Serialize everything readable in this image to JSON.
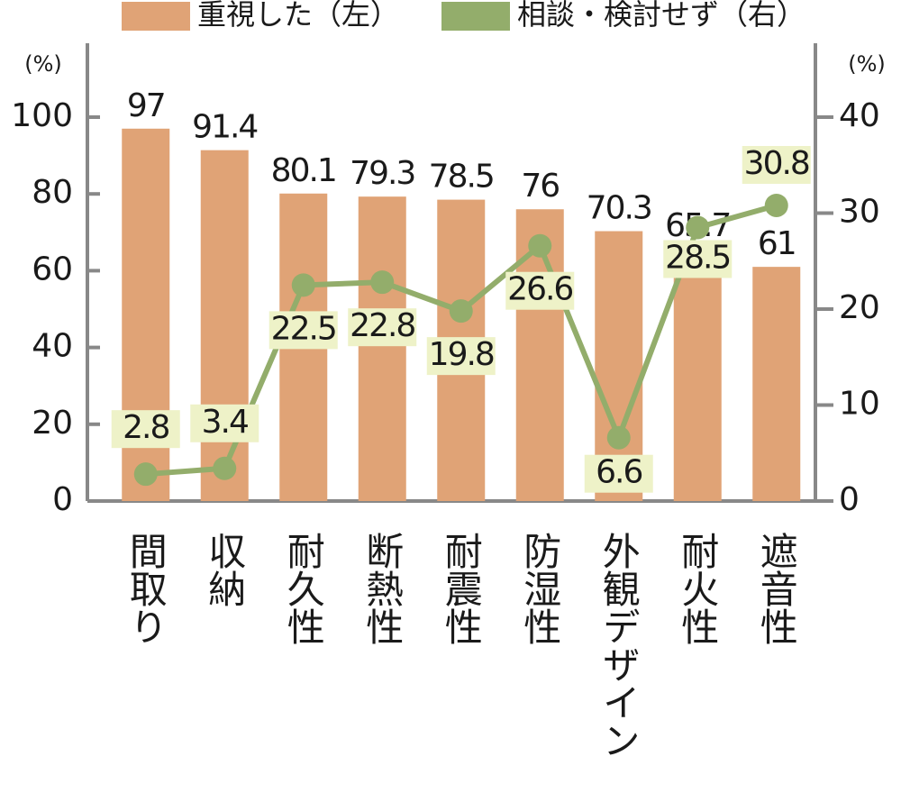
{
  "chart_data": {
    "type": "bar-line",
    "categories": [
      "間取り",
      "収納",
      "耐久性",
      "断熱性",
      "耐震性",
      "防湿性",
      "外観デザイン",
      "耐火性",
      "遮音性"
    ],
    "series": [
      {
        "name": "重視した（左）",
        "type": "bar",
        "color": "#e0a376",
        "values": [
          97,
          91.4,
          80.1,
          79.3,
          78.5,
          76,
          70.3,
          65.7,
          61
        ]
      },
      {
        "name": "相談・検討せず（右）",
        "type": "line",
        "axis": "y2",
        "color": "#93ad6b",
        "values": [
          2.8,
          3.4,
          22.5,
          22.8,
          19.8,
          26.6,
          6.6,
          28.5,
          30.8
        ]
      }
    ],
    "y_unit": "(%)",
    "y2_unit": "(%)",
    "ylim": [
      0,
      100
    ],
    "yticks": [
      0,
      20,
      40,
      60,
      80,
      100
    ],
    "y2lim": [
      0,
      40
    ],
    "y2ticks": [
      0,
      10,
      20,
      30,
      40
    ]
  }
}
